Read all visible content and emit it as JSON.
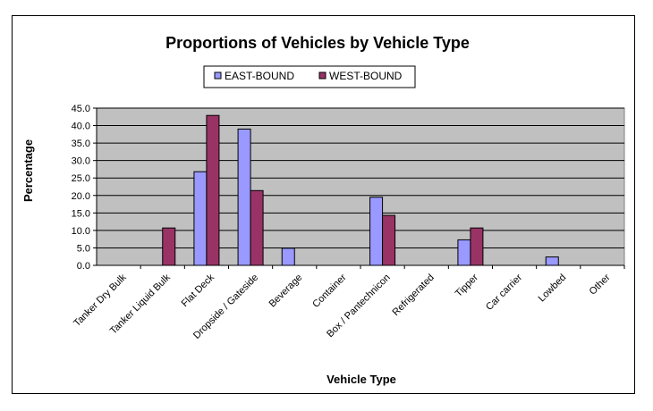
{
  "chart_data": {
    "type": "bar",
    "title": "Proportions of Vehicles by Vehicle Type",
    "xlabel": "Vehicle Type",
    "ylabel": "Percentage",
    "ylim": [
      0,
      45
    ],
    "ytick_step": 5,
    "ytick_labels": [
      "0.0",
      "5.0",
      "10.0",
      "15.0",
      "20.0",
      "25.0",
      "30.0",
      "35.0",
      "40.0",
      "45.0"
    ],
    "grid": true,
    "legend_position": "top-center",
    "categories": [
      "Tanker Dry Bulk",
      "Tanker Liquid Bulk",
      "Flat Deck",
      "Dropside / Gateside",
      "Beverage",
      "Container",
      "Box / Pantechnicon",
      "Refrigerated",
      "Tipper",
      "Car carrier",
      "Lowbed",
      "Other"
    ],
    "series": [
      {
        "name": "EAST-BOUND",
        "color": "#9999ff",
        "values": [
          0,
          0,
          26.8,
          39.0,
          4.9,
          0,
          19.5,
          0,
          7.3,
          0,
          2.4,
          0
        ]
      },
      {
        "name": "WEST-BOUND",
        "color": "#993366",
        "values": [
          0,
          10.7,
          42.9,
          21.4,
          0,
          0,
          14.3,
          0,
          10.7,
          0,
          0,
          0
        ]
      }
    ],
    "plot_background": "#c0c0c0"
  }
}
